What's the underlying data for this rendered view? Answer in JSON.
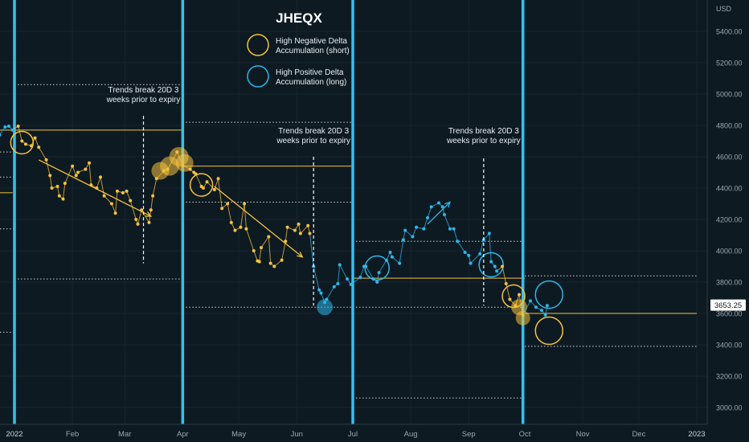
{
  "chart_data": {
    "type": "line",
    "title": "JHEQX",
    "currency_label": "USD",
    "x_axis": {
      "tick_labels": [
        "2022",
        "Feb",
        "Mar",
        "Apr",
        "May",
        "Jun",
        "Jul",
        "Aug",
        "Sep",
        "Oct",
        "Nov",
        "Dec",
        "2023"
      ],
      "tick_dates": [
        "2022-01-01",
        "2022-02-01",
        "2022-03-01",
        "2022-04-01",
        "2022-05-01",
        "2022-06-01",
        "2022-07-01",
        "2022-08-01",
        "2022-09-01",
        "2022-10-01",
        "2022-11-01",
        "2022-12-01",
        "2023-01-01"
      ]
    },
    "y_axis": {
      "ticks": [
        3000,
        3200,
        3400,
        3600,
        3800,
        4000,
        4200,
        4400,
        4600,
        4800,
        5000,
        5200,
        5400
      ],
      "tick_labels": [
        "3000.00",
        "3200.00",
        "3400.00",
        "3600.00",
        "3800.00",
        "4000.00",
        "4200.00",
        "4400.00",
        "4600.00",
        "4800.00",
        "5000.00",
        "5200.00",
        "5400.00"
      ],
      "ylim": [
        2920,
        5580
      ]
    },
    "last_price": 3653.25,
    "last_price_label": "3653.25",
    "legend": [
      {
        "label_line1": "High Negative Delta",
        "label_line2": "Accumulation (short)",
        "color": "#f5c23e"
      },
      {
        "label_line1": "High Positive Delta",
        "label_line2": "Accumulation (long)",
        "color": "#2eb6e8"
      }
    ],
    "colors": {
      "short": "#f5c23e",
      "long": "#2eb6e8",
      "price_line": "#7fb0c8",
      "expiry": "#33c1f0",
      "background": "#0e1a22"
    },
    "expiry_dates": [
      "2022-01-01",
      "2022-04-01",
      "2022-07-01",
      "2022-09-30"
    ],
    "annotations": [
      {
        "line1": "Trends break 20D 3",
        "line2": "weeks prior to expiry",
        "date": "2022-03-11",
        "y": 5010
      },
      {
        "line1": "Trends break 20D 3",
        "line2": "weeks prior to expiry",
        "date": "2022-06-10",
        "y": 4750
      },
      {
        "line1": "Trends break 20D 3",
        "line2": "weeks prior to expiry",
        "date": "2022-09-09",
        "y": 4750
      }
    ],
    "series": [
      {
        "points": [
          [
            "2021-12-24",
            4740,
            "long"
          ],
          [
            "2021-12-27",
            4790,
            "long"
          ],
          [
            "2021-12-29",
            4795,
            "long"
          ],
          [
            "2021-12-31",
            4770,
            "long"
          ],
          [
            "2022-01-03",
            4795,
            "short"
          ],
          [
            "2022-01-05",
            4700,
            "short"
          ],
          [
            "2022-01-07",
            4680,
            "short"
          ],
          [
            "2022-01-10",
            4670,
            "short"
          ],
          [
            "2022-01-12",
            4720,
            "short"
          ],
          [
            "2022-01-14",
            4660,
            "short"
          ],
          [
            "2022-01-18",
            4580,
            "short"
          ],
          [
            "2022-01-20",
            4480,
            "short"
          ],
          [
            "2022-01-21",
            4400,
            "short"
          ],
          [
            "2022-01-24",
            4410,
            "short"
          ],
          [
            "2022-01-25",
            4350,
            "short"
          ],
          [
            "2022-01-27",
            4330,
            "short"
          ],
          [
            "2022-01-28",
            4430,
            "short"
          ],
          [
            "2022-02-01",
            4540,
            "short"
          ],
          [
            "2022-02-03",
            4480,
            "short"
          ],
          [
            "2022-02-04",
            4500,
            "short"
          ],
          [
            "2022-02-08",
            4520,
            "short"
          ],
          [
            "2022-02-10",
            4560,
            "short"
          ],
          [
            "2022-02-11",
            4420,
            "short"
          ],
          [
            "2022-02-14",
            4400,
            "short"
          ],
          [
            "2022-02-16",
            4470,
            "short"
          ],
          [
            "2022-02-18",
            4350,
            "short"
          ],
          [
            "2022-02-22",
            4300,
            "short"
          ],
          [
            "2022-02-24",
            4240,
            "short"
          ],
          [
            "2022-02-25",
            4380,
            "short"
          ],
          [
            "2022-02-28",
            4370,
            "short"
          ],
          [
            "2022-03-02",
            4380,
            "short"
          ],
          [
            "2022-03-04",
            4320,
            "short"
          ],
          [
            "2022-03-07",
            4200,
            "short"
          ],
          [
            "2022-03-08",
            4170,
            "short"
          ],
          [
            "2022-03-10",
            4260,
            "short"
          ],
          [
            "2022-03-14",
            4180,
            "short"
          ],
          [
            "2022-03-15",
            4260,
            "short"
          ],
          [
            "2022-03-16",
            4350,
            "short"
          ],
          [
            "2022-03-18",
            4460,
            "short"
          ],
          [
            "2022-03-22",
            4510,
            "short"
          ],
          [
            "2022-03-24",
            4520,
            "short"
          ],
          [
            "2022-03-29",
            4630,
            "short"
          ],
          [
            "2022-04-01",
            4545,
            "short"
          ],
          [
            "2022-04-05",
            4520,
            "short"
          ],
          [
            "2022-04-07",
            4500,
            "short"
          ],
          [
            "2022-04-08",
            4490,
            "short"
          ],
          [
            "2022-04-11",
            4410,
            "short"
          ],
          [
            "2022-04-12",
            4400,
            "short"
          ],
          [
            "2022-04-14",
            4440,
            "short"
          ],
          [
            "2022-04-18",
            4390,
            "short"
          ],
          [
            "2022-04-20",
            4460,
            "short"
          ],
          [
            "2022-04-22",
            4270,
            "short"
          ],
          [
            "2022-04-25",
            4300,
            "short"
          ],
          [
            "2022-04-27",
            4180,
            "short"
          ],
          [
            "2022-04-29",
            4130,
            "short"
          ],
          [
            "2022-05-02",
            4150,
            "short"
          ],
          [
            "2022-05-04",
            4300,
            "short"
          ],
          [
            "2022-05-05",
            4140,
            "short"
          ],
          [
            "2022-05-09",
            4000,
            "short"
          ],
          [
            "2022-05-11",
            3935,
            "short"
          ],
          [
            "2022-05-12",
            3930,
            "short"
          ],
          [
            "2022-05-13",
            4020,
            "short"
          ],
          [
            "2022-05-17",
            4090,
            "short"
          ],
          [
            "2022-05-18",
            3920,
            "short"
          ],
          [
            "2022-05-20",
            3900,
            "short"
          ],
          [
            "2022-05-24",
            3940,
            "short"
          ],
          [
            "2022-05-26",
            4060,
            "short"
          ],
          [
            "2022-05-27",
            4150,
            "short"
          ],
          [
            "2022-05-31",
            4130,
            "short"
          ],
          [
            "2022-06-02",
            4170,
            "short"
          ],
          [
            "2022-06-03",
            4110,
            "short"
          ],
          [
            "2022-06-07",
            4160,
            "short"
          ],
          [
            "2022-06-08",
            4110,
            "short"
          ],
          [
            "2022-06-10",
            3900,
            "long"
          ],
          [
            "2022-06-13",
            3750,
            "long"
          ],
          [
            "2022-06-14",
            3730,
            "long"
          ],
          [
            "2022-06-16",
            3670,
            "long"
          ],
          [
            "2022-06-17",
            3690,
            "long"
          ],
          [
            "2022-06-21",
            3770,
            "long"
          ],
          [
            "2022-06-23",
            3790,
            "long"
          ],
          [
            "2022-06-24",
            3910,
            "long"
          ],
          [
            "2022-06-28",
            3820,
            "long"
          ],
          [
            "2022-06-30",
            3785,
            "long"
          ],
          [
            "2022-07-05",
            3830,
            "long"
          ],
          [
            "2022-07-07",
            3900,
            "long"
          ],
          [
            "2022-07-08",
            3900,
            "long"
          ],
          [
            "2022-07-12",
            3820,
            "long"
          ],
          [
            "2022-07-14",
            3800,
            "long"
          ],
          [
            "2022-07-15",
            3860,
            "long"
          ],
          [
            "2022-07-19",
            3940,
            "long"
          ],
          [
            "2022-07-21",
            3990,
            "long"
          ],
          [
            "2022-07-22",
            3960,
            "long"
          ],
          [
            "2022-07-26",
            3920,
            "long"
          ],
          [
            "2022-07-28",
            4070,
            "long"
          ],
          [
            "2022-07-29",
            4130,
            "long"
          ],
          [
            "2022-08-02",
            4090,
            "long"
          ],
          [
            "2022-08-04",
            4150,
            "long"
          ],
          [
            "2022-08-08",
            4140,
            "long"
          ],
          [
            "2022-08-10",
            4210,
            "long"
          ],
          [
            "2022-08-12",
            4280,
            "long"
          ],
          [
            "2022-08-16",
            4305,
            "long"
          ],
          [
            "2022-08-18",
            4280,
            "long"
          ],
          [
            "2022-08-19",
            4230,
            "long"
          ],
          [
            "2022-08-22",
            4140,
            "long"
          ],
          [
            "2022-08-24",
            4140,
            "long"
          ],
          [
            "2022-08-26",
            4060,
            "long"
          ],
          [
            "2022-08-30",
            3990,
            "long"
          ],
          [
            "2022-09-01",
            3970,
            "long"
          ],
          [
            "2022-09-02",
            3920,
            "long"
          ],
          [
            "2022-09-07",
            3980,
            "long"
          ],
          [
            "2022-09-09",
            4070,
            "long"
          ],
          [
            "2022-09-12",
            4110,
            "long"
          ],
          [
            "2022-09-13",
            3930,
            "long"
          ],
          [
            "2022-09-15",
            3900,
            "long"
          ],
          [
            "2022-09-16",
            3870,
            "long"
          ],
          [
            "2022-09-19",
            3900,
            "short"
          ],
          [
            "2022-09-21",
            3790,
            "short"
          ],
          [
            "2022-09-23",
            3690,
            "short"
          ],
          [
            "2022-09-26",
            3650,
            "short"
          ],
          [
            "2022-09-28",
            3720,
            "short"
          ],
          [
            "2022-09-30",
            3590,
            "short"
          ],
          [
            "2022-10-04",
            3680,
            "long"
          ],
          [
            "2022-10-07",
            3640,
            "long"
          ],
          [
            "2022-10-10",
            3620,
            "long"
          ],
          [
            "2022-10-12",
            3590,
            "long"
          ],
          [
            "2022-10-13",
            3650,
            "long"
          ]
        ]
      }
    ]
  }
}
